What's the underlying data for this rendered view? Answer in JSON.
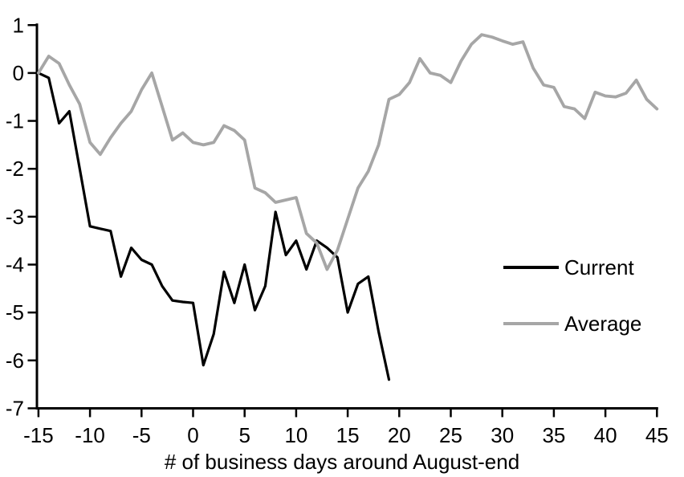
{
  "chart_data": {
    "type": "line",
    "title": "",
    "xlabel": "# of business days around August-end",
    "ylabel": "",
    "xlim": [
      -15,
      45
    ],
    "ylim": [
      -7,
      1
    ],
    "x_ticks": [
      -15,
      -10,
      -5,
      0,
      5,
      10,
      15,
      20,
      25,
      30,
      35,
      40,
      45
    ],
    "y_ticks": [
      1,
      0,
      -1,
      -2,
      -3,
      -4,
      -5,
      -6,
      -7
    ],
    "grid": false,
    "legend_position": "right-middle",
    "series": [
      {
        "name": "Current",
        "color": "#000000",
        "x": [
          -15,
          -14,
          -13,
          -12,
          -11,
          -10,
          -9,
          -8,
          -7,
          -6,
          -5,
          -4,
          -3,
          -2,
          -1,
          0,
          1,
          2,
          3,
          4,
          5,
          6,
          7,
          8,
          9,
          10,
          11,
          12,
          13,
          14,
          15,
          16,
          17,
          18,
          19
        ],
        "values": [
          0,
          -0.1,
          -1.05,
          -0.8,
          -2.0,
          -3.2,
          -3.25,
          -3.3,
          -4.25,
          -3.65,
          -3.9,
          -4.0,
          -4.45,
          -4.75,
          -4.78,
          -4.8,
          -6.1,
          -5.45,
          -4.15,
          -4.8,
          -4.0,
          -4.95,
          -4.45,
          -2.9,
          -3.8,
          -3.5,
          -4.1,
          -3.5,
          -3.65,
          -3.85,
          -5.0,
          -4.4,
          -4.25,
          -5.4,
          -6.4
        ]
      },
      {
        "name": "Average",
        "color": "#A6A6A6",
        "x": [
          -15,
          -14,
          -13,
          -12,
          -11,
          -10,
          -9,
          -8,
          -7,
          -6,
          -5,
          -4,
          -3,
          -2,
          -1,
          0,
          1,
          2,
          3,
          4,
          5,
          6,
          7,
          8,
          9,
          10,
          11,
          12,
          13,
          14,
          15,
          16,
          17,
          18,
          19,
          20,
          21,
          22,
          23,
          24,
          25,
          26,
          27,
          28,
          29,
          30,
          31,
          32,
          33,
          34,
          35,
          36,
          37,
          38,
          39,
          40,
          41,
          42,
          43,
          44,
          45
        ],
        "values": [
          0,
          0.35,
          0.2,
          -0.25,
          -0.65,
          -1.45,
          -1.7,
          -1.35,
          -1.05,
          -0.8,
          -0.35,
          0.0,
          -0.7,
          -1.4,
          -1.25,
          -1.45,
          -1.5,
          -1.45,
          -1.1,
          -1.2,
          -1.4,
          -2.4,
          -2.5,
          -2.7,
          -2.65,
          -2.6,
          -3.35,
          -3.55,
          -4.1,
          -3.7,
          -3.05,
          -2.4,
          -2.05,
          -1.5,
          -0.55,
          -0.45,
          -0.2,
          0.3,
          0.0,
          -0.05,
          -0.2,
          0.25,
          0.6,
          0.8,
          0.75,
          0.67,
          0.6,
          0.65,
          0.1,
          -0.25,
          -0.3,
          -0.7,
          -0.75,
          -0.95,
          -0.4,
          -0.48,
          -0.5,
          -0.42,
          -0.15,
          -0.55,
          -0.75
        ]
      }
    ]
  },
  "colors": {
    "axis": "#000000",
    "background": "#FFFFFF",
    "current_line": "#000000",
    "average_line": "#A6A6A6"
  }
}
